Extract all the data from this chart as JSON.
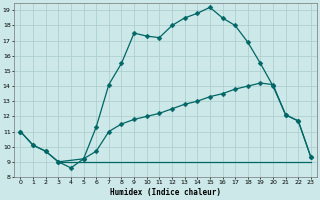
{
  "bg_color": "#cce8e8",
  "grid_color": "#aacccc",
  "line_color": "#006666",
  "xlabel": "Humidex (Indice chaleur)",
  "ylim": [
    8,
    19.5
  ],
  "xlim": [
    -0.5,
    23.5
  ],
  "yticks": [
    8,
    9,
    10,
    11,
    12,
    13,
    14,
    15,
    16,
    17,
    18,
    19
  ],
  "xticks": [
    0,
    1,
    2,
    3,
    4,
    5,
    6,
    7,
    8,
    9,
    10,
    11,
    12,
    13,
    14,
    15,
    16,
    17,
    18,
    19,
    20,
    21,
    22,
    23
  ],
  "line1_x": [
    0,
    1,
    2,
    3,
    4,
    5,
    6,
    7,
    8,
    9,
    10,
    11,
    12,
    13,
    14,
    15,
    16,
    17,
    18,
    19,
    20,
    21,
    22,
    23
  ],
  "line1_y": [
    11,
    10.1,
    9.7,
    9.0,
    8.6,
    9.2,
    11.3,
    14.1,
    15.5,
    17.5,
    17.3,
    17.2,
    18.0,
    18.5,
    18.8,
    19.2,
    18.5,
    18.0,
    16.9,
    15.5,
    14.0,
    12.1,
    11.7,
    9.3
  ],
  "line2_x": [
    0,
    1,
    2,
    3,
    5,
    6,
    7,
    8,
    9,
    10,
    11,
    12,
    13,
    14,
    15,
    16,
    17,
    18,
    19,
    20,
    21,
    22,
    23
  ],
  "line2_y": [
    11,
    10.1,
    9.7,
    9.0,
    9.2,
    9.7,
    11.0,
    11.5,
    11.8,
    12.0,
    12.2,
    12.5,
    12.8,
    13.0,
    13.3,
    13.5,
    13.8,
    14.0,
    14.2,
    14.1,
    12.1,
    11.7,
    9.3
  ],
  "line3_x": [
    3,
    23
  ],
  "line3_y": [
    9.0,
    9.0
  ],
  "markersize": 2.5,
  "linewidth": 0.9
}
